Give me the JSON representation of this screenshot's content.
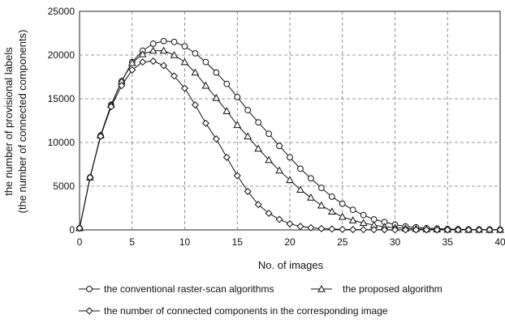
{
  "chart_data": {
    "type": "line",
    "ylabel": "the number of provisional labels",
    "ylabel2": "(the number of connected components)",
    "xlabel": "No. of images",
    "xlim": [
      0,
      40
    ],
    "ylim": [
      0,
      25000
    ],
    "x_ticks": [
      0,
      5,
      10,
      15,
      20,
      25,
      30,
      35,
      40
    ],
    "y_ticks": [
      0,
      5000,
      10000,
      15000,
      20000,
      25000
    ],
    "grid": true,
    "legend_position": "bottom",
    "x": [
      0,
      1,
      2,
      3,
      4,
      5,
      6,
      7,
      8,
      9,
      10,
      11,
      12,
      13,
      14,
      15,
      16,
      17,
      18,
      19,
      20,
      21,
      22,
      23,
      24,
      25,
      26,
      27,
      28,
      29,
      30,
      31,
      32,
      33,
      34,
      35,
      36,
      37,
      38,
      39,
      40
    ],
    "series": [
      {
        "name": "the conventional raster-scan algorithms",
        "marker": "circle",
        "values": [
          200,
          6000,
          10800,
          14300,
          17000,
          19200,
          20500,
          21300,
          21600,
          21500,
          21000,
          20200,
          19200,
          18000,
          16700,
          15200,
          13700,
          12300,
          11000,
          9600,
          8300,
          7000,
          5900,
          4800,
          3800,
          3000,
          2300,
          1700,
          1200,
          900,
          600,
          400,
          300,
          200,
          150,
          100,
          80,
          60,
          50,
          40,
          30
        ]
      },
      {
        "name": "the proposed algorithm",
        "marker": "triangle",
        "values": [
          200,
          6000,
          10800,
          14300,
          17000,
          19100,
          20100,
          20500,
          20500,
          20000,
          19200,
          18000,
          16500,
          15100,
          13600,
          12000,
          10700,
          9300,
          8000,
          6800,
          5700,
          4600,
          3700,
          2800,
          2100,
          1500,
          1100,
          800,
          550,
          350,
          250,
          170,
          120,
          80,
          60,
          40,
          30,
          20,
          15,
          10,
          10
        ]
      },
      {
        "name": "the number of connected components in the corresponding image",
        "marker": "diamond",
        "values": [
          200,
          6000,
          10700,
          14100,
          16500,
          18300,
          19200,
          19300,
          18800,
          17600,
          16200,
          14300,
          12200,
          10400,
          8300,
          6200,
          4400,
          2900,
          1900,
          1200,
          700,
          400,
          250,
          150,
          100,
          60,
          40,
          30,
          20,
          15,
          10,
          8,
          6,
          5,
          4,
          3,
          3,
          2,
          2,
          2,
          2
        ]
      }
    ]
  }
}
